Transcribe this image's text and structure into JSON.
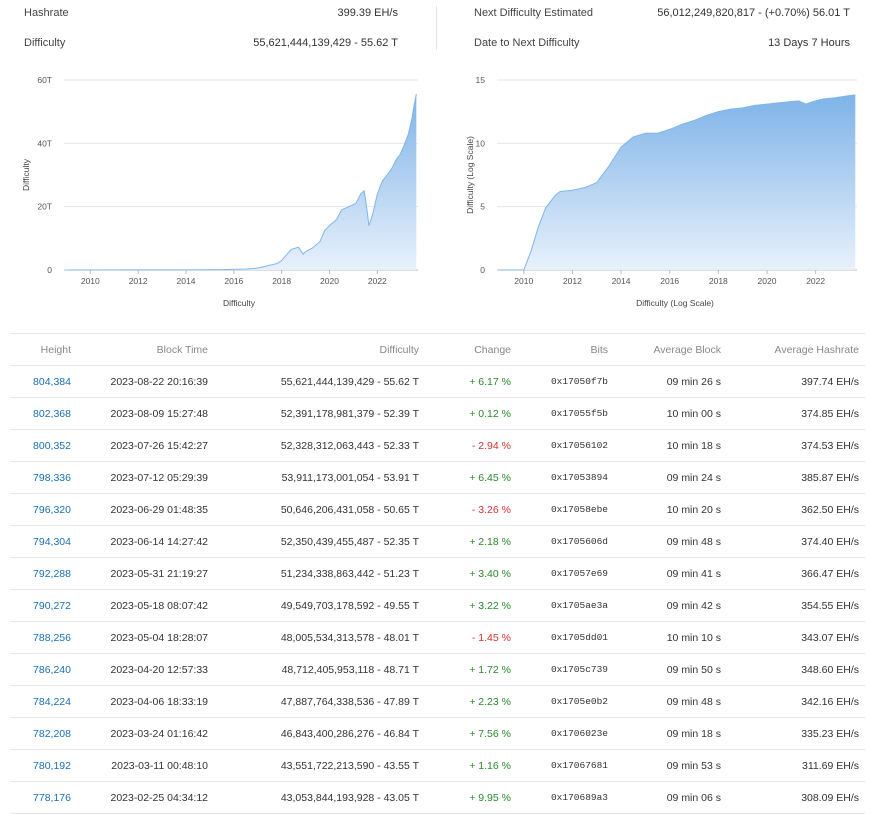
{
  "stats": {
    "hashrate_label": "Hashrate",
    "hashrate_value": "399.39 EH/s",
    "difficulty_label": "Difficulty",
    "difficulty_value": "55,621,444,139,429 - 55.62 T",
    "next_label": "Next Difficulty Estimated",
    "next_value": "56,012,249,820,817 - (+0.70%) 56.01 T",
    "date_label": "Date to Next Difficulty",
    "date_value": "13 Days 7 Hours"
  },
  "chart_data": [
    {
      "type": "area",
      "title": "",
      "xlabel": "Difficulty",
      "ylabel": "Difficulty",
      "xlim": [
        2008.9,
        2023.7
      ],
      "ylim": [
        0,
        60
      ],
      "y_ticks": [
        "0",
        "20T",
        "40T",
        "60T"
      ],
      "x_ticks": [
        "2010",
        "2012",
        "2014",
        "2016",
        "2018",
        "2020",
        "2022"
      ],
      "grid": true,
      "series": [
        {
          "x": [
            2009.0,
            2014.0,
            2015.5,
            2016.5,
            2017.0,
            2017.5,
            2017.8,
            2018.0,
            2018.4,
            2018.7,
            2018.9,
            2019.0,
            2019.3,
            2019.6,
            2019.8,
            2020.0,
            2020.3,
            2020.5,
            2020.8,
            2021.1,
            2021.3,
            2021.45,
            2021.55,
            2021.65,
            2021.8,
            2022.0,
            2022.2,
            2022.4,
            2022.6,
            2022.8,
            2022.95,
            2023.1,
            2023.3,
            2023.45,
            2023.55,
            2023.63
          ],
          "values": [
            0,
            0.04,
            0.1,
            0.3,
            0.6,
            1.5,
            2.0,
            3.0,
            6.5,
            7.2,
            5.0,
            5.8,
            7.0,
            9.0,
            12.5,
            14.0,
            16.0,
            19.0,
            20.0,
            21.0,
            24.0,
            25.0,
            20.0,
            14.0,
            17.5,
            24.0,
            28.0,
            30.0,
            32.0,
            35.0,
            36.5,
            39.0,
            43.0,
            48.0,
            52.5,
            55.6
          ]
        }
      ]
    },
    {
      "type": "area",
      "title": "",
      "xlabel": "Difficulty (Log Scale)",
      "ylabel": "Difficulty (Log Scale)",
      "xlim": [
        2008.9,
        2023.7
      ],
      "ylim": [
        0,
        15
      ],
      "y_ticks": [
        "0",
        "5",
        "10",
        "15"
      ],
      "x_ticks": [
        "2010",
        "2012",
        "2014",
        "2016",
        "2018",
        "2020",
        "2022"
      ],
      "grid": true,
      "series": [
        {
          "x": [
            2009.0,
            2010.0,
            2010.3,
            2010.6,
            2010.9,
            2011.3,
            2011.5,
            2012.0,
            2012.5,
            2013.0,
            2013.5,
            2014.0,
            2014.5,
            2015.0,
            2015.5,
            2016.0,
            2016.5,
            2017.0,
            2017.5,
            2018.0,
            2018.5,
            2019.0,
            2019.5,
            2020.0,
            2020.5,
            2021.0,
            2021.3,
            2021.6,
            2021.9,
            2022.3,
            2022.8,
            2023.3,
            2023.63
          ],
          "values": [
            0,
            0.0,
            1.5,
            3.4,
            4.9,
            5.9,
            6.2,
            6.3,
            6.5,
            6.9,
            8.2,
            9.7,
            10.5,
            10.8,
            10.8,
            11.1,
            11.5,
            11.8,
            12.2,
            12.5,
            12.7,
            12.8,
            13.0,
            13.1,
            13.2,
            13.3,
            13.35,
            13.1,
            13.3,
            13.5,
            13.6,
            13.75,
            13.83
          ]
        }
      ]
    }
  ],
  "table": {
    "headers": {
      "height": "Height",
      "block_time": "Block Time",
      "difficulty": "Difficulty",
      "change": "Change",
      "bits": "Bits",
      "avg_block": "Average Block",
      "avg_hashrate": "Average Hashrate"
    },
    "rows": [
      {
        "height": "804,384",
        "time": "2023-08-22 20:16:39",
        "difficulty": "55,621,444,139,429 - 55.62 T",
        "change": "+ 6.17 %",
        "dir": "pos",
        "bits": "0x17050f7b",
        "avg_block": "09 min 26 s",
        "avg_hashrate": "397.74 EH/s"
      },
      {
        "height": "802,368",
        "time": "2023-08-09 15:27:48",
        "difficulty": "52,391,178,981,379 - 52.39 T",
        "change": "+ 0.12 %",
        "dir": "pos",
        "bits": "0x17055f5b",
        "avg_block": "10 min 00 s",
        "avg_hashrate": "374.85 EH/s"
      },
      {
        "height": "800,352",
        "time": "2023-07-26 15:42:27",
        "difficulty": "52,328,312,063,443 - 52.33 T",
        "change": "- 2.94 %",
        "dir": "neg",
        "bits": "0x17056102",
        "avg_block": "10 min 18 s",
        "avg_hashrate": "374.53 EH/s"
      },
      {
        "height": "798,336",
        "time": "2023-07-12 05:29:39",
        "difficulty": "53,911,173,001,054 - 53.91 T",
        "change": "+ 6.45 %",
        "dir": "pos",
        "bits": "0x17053894",
        "avg_block": "09 min 24 s",
        "avg_hashrate": "385.87 EH/s"
      },
      {
        "height": "796,320",
        "time": "2023-06-29 01:48:35",
        "difficulty": "50,646,206,431,058 - 50.65 T",
        "change": "- 3.26 %",
        "dir": "neg",
        "bits": "0x17058ebe",
        "avg_block": "10 min 20 s",
        "avg_hashrate": "362.50 EH/s"
      },
      {
        "height": "794,304",
        "time": "2023-06-14 14:27:42",
        "difficulty": "52,350,439,455,487 - 52.35 T",
        "change": "+ 2.18 %",
        "dir": "pos",
        "bits": "0x1705606d",
        "avg_block": "09 min 48 s",
        "avg_hashrate": "374.40 EH/s"
      },
      {
        "height": "792,288",
        "time": "2023-05-31 21:19:27",
        "difficulty": "51,234,338,863,442 - 51.23 T",
        "change": "+ 3.40 %",
        "dir": "pos",
        "bits": "0x17057e69",
        "avg_block": "09 min 41 s",
        "avg_hashrate": "366.47 EH/s"
      },
      {
        "height": "790,272",
        "time": "2023-05-18 08:07:42",
        "difficulty": "49,549,703,178,592 - 49.55 T",
        "change": "+ 3.22 %",
        "dir": "pos",
        "bits": "0x1705ae3a",
        "avg_block": "09 min 42 s",
        "avg_hashrate": "354.55 EH/s"
      },
      {
        "height": "788,256",
        "time": "2023-05-04 18:28:07",
        "difficulty": "48,005,534,313,578 - 48.01 T",
        "change": "- 1.45 %",
        "dir": "neg",
        "bits": "0x1705dd01",
        "avg_block": "10 min 10 s",
        "avg_hashrate": "343.07 EH/s"
      },
      {
        "height": "786,240",
        "time": "2023-04-20 12:57:33",
        "difficulty": "48,712,405,953,118 - 48.71 T",
        "change": "+ 1.72 %",
        "dir": "pos",
        "bits": "0x1705c739",
        "avg_block": "09 min 50 s",
        "avg_hashrate": "348.60 EH/s"
      },
      {
        "height": "784,224",
        "time": "2023-04-06 18:33:19",
        "difficulty": "47,887,764,338,536 - 47.89 T",
        "change": "+ 2.23 %",
        "dir": "pos",
        "bits": "0x1705e0b2",
        "avg_block": "09 min 48 s",
        "avg_hashrate": "342.16 EH/s"
      },
      {
        "height": "782,208",
        "time": "2023-03-24 01:16:42",
        "difficulty": "46,843,400,286,276 - 46.84 T",
        "change": "+ 7.56 %",
        "dir": "pos",
        "bits": "0x1706023e",
        "avg_block": "09 min 18 s",
        "avg_hashrate": "335.23 EH/s"
      },
      {
        "height": "780,192",
        "time": "2023-03-11 00:48:10",
        "difficulty": "43,551,722,213,590 - 43.55 T",
        "change": "+ 1.16 %",
        "dir": "pos",
        "bits": "0x17067681",
        "avg_block": "09 min 53 s",
        "avg_hashrate": "311.69 EH/s"
      },
      {
        "height": "778,176",
        "time": "2023-02-25 04:34:12",
        "difficulty": "43,053,844,193,928 - 43.05 T",
        "change": "+ 9.95 %",
        "dir": "pos",
        "bits": "0x170689a3",
        "avg_block": "09 min 06 s",
        "avg_hashrate": "308.09 EH/s"
      }
    ]
  },
  "colors": {
    "link": "#1a6fb0",
    "positive": "#2a8a2a",
    "negative": "#d9302c",
    "area_line": "#7fb6ea",
    "area_fill": "#cfe3f7"
  }
}
